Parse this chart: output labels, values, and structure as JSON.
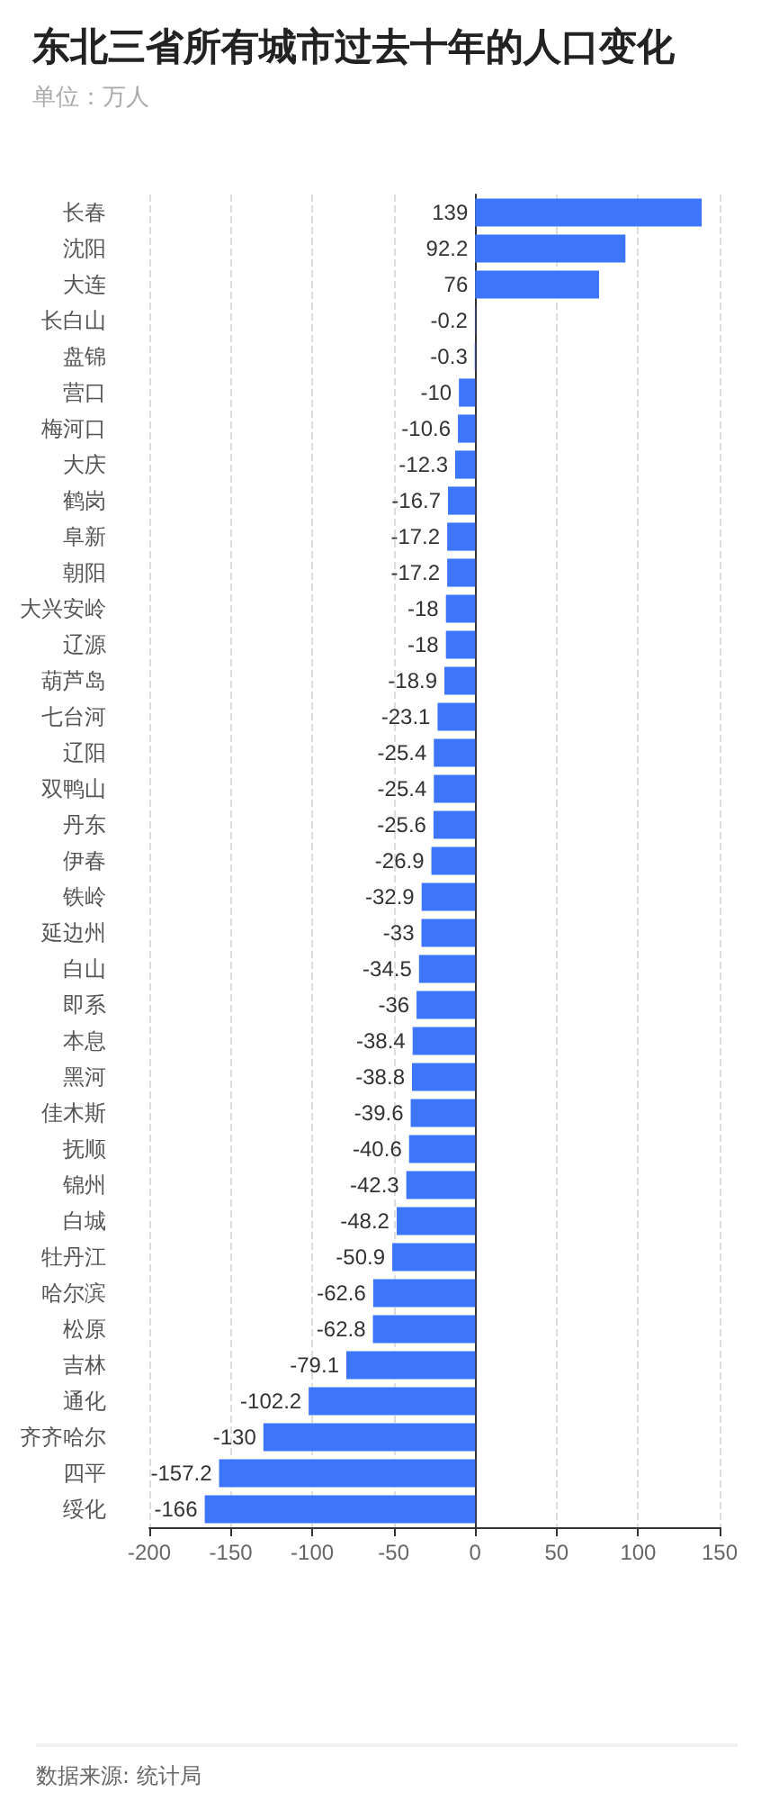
{
  "chart_data": {
    "type": "bar",
    "orientation": "horizontal",
    "title": "东北三省所有城市过去十年的人口变化",
    "subtitle": "单位：万人",
    "categories": [
      "长春",
      "沈阳",
      "大连",
      "长白山",
      "盘锦",
      "营口",
      "梅河口",
      "大庆",
      "鹤岗",
      "阜新",
      "朝阳",
      "大兴安岭",
      "辽源",
      "葫芦岛",
      "七台河",
      "辽阳",
      "双鸭山",
      "丹东",
      "伊春",
      "铁岭",
      "延边州",
      "白山",
      "即系",
      "本息",
      "黑河",
      "佳木斯",
      "抚顺",
      "锦州",
      "白城",
      "牡丹江",
      "哈尔滨",
      "松原",
      "吉林",
      "通化",
      "齐齐哈尔",
      "四平",
      "绥化"
    ],
    "values": [
      139,
      92.2,
      76,
      -0.2,
      -0.3,
      -10,
      -10.6,
      -12.3,
      -16.7,
      -17.2,
      -17.2,
      -18,
      -18,
      -18.9,
      -23.1,
      -25.4,
      -25.4,
      -25.6,
      -26.9,
      -32.9,
      -33,
      -34.5,
      -36,
      -38.4,
      -38.8,
      -39.6,
      -40.6,
      -42.3,
      -48.2,
      -50.9,
      -62.6,
      -62.8,
      -79.1,
      -102.2,
      -130,
      -157.2,
      -166
    ],
    "color": "#3d76fb",
    "data_labels": true,
    "xlim": [
      -200,
      150
    ],
    "xticks": [
      -200,
      -150,
      -100,
      -50,
      0,
      50,
      100,
      150
    ],
    "grid": "x",
    "annotations": [
      "数据来源: 统计局"
    ]
  }
}
